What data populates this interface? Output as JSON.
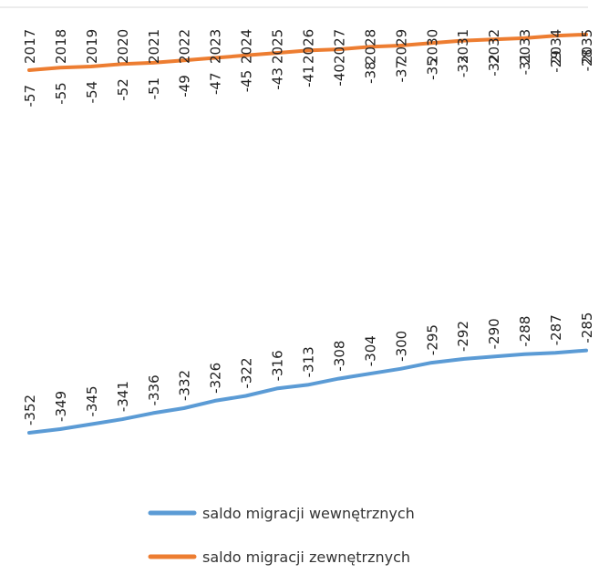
{
  "chart_data": {
    "type": "line",
    "categories": [
      "2017",
      "2018",
      "2019",
      "2020",
      "2021",
      "2022",
      "2023",
      "2024",
      "2025",
      "2026",
      "2027",
      "2028",
      "2029",
      "2030",
      "2031",
      "2032",
      "2033",
      "2034",
      "2035"
    ],
    "series": [
      {
        "name": "saldo migracji wewnętrznych",
        "color": "#5b9bd5",
        "values": [
          -352,
          -349,
          -345,
          -341,
          -336,
          -332,
          -326,
          -322,
          -316,
          -313,
          -308,
          -304,
          -300,
          -295,
          -292,
          -290,
          -288,
          -287,
          -285
        ]
      },
      {
        "name": "saldo migracji zewnętrznych",
        "color": "#ed7d31",
        "values": [
          -57,
          -55,
          -54,
          -52,
          -51,
          -49,
          -47,
          -45,
          -43,
          -41,
          -40,
          -38,
          -37,
          -35,
          -33,
          -32,
          -31,
          -29,
          -28
        ]
      }
    ],
    "ylim": [
      -360,
      0
    ],
    "legend_position": "bottom",
    "grid": false
  }
}
